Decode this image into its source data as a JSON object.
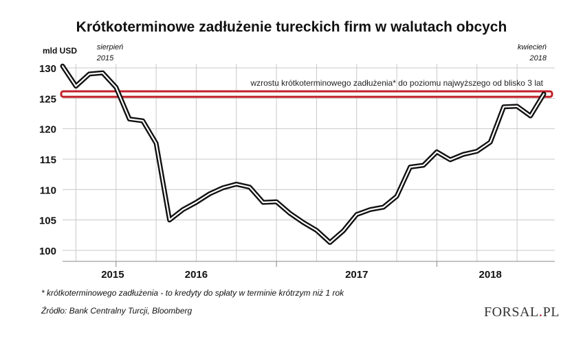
{
  "chart_data": {
    "type": "line",
    "title": "Krótkoterminowe zadłużenie tureckich firm w walutach obcych",
    "ylabel": "mld USD",
    "xlabel": "",
    "ylim": [
      100,
      130
    ],
    "yticks": [
      100,
      105,
      110,
      115,
      120,
      125,
      130
    ],
    "year_labels": [
      "2015",
      "2016",
      "2017",
      "2018"
    ],
    "series": [
      {
        "values": [
          130.3,
          127.0,
          129.0,
          129.2,
          126.8,
          121.6,
          121.3,
          117.6,
          105.0,
          106.7,
          107.9,
          109.3,
          110.3,
          110.9,
          110.4,
          107.9,
          108.0,
          106.1,
          104.6,
          103.3,
          101.3,
          103.2,
          105.9,
          106.7,
          107.1,
          108.9,
          113.7,
          114.0,
          116.2,
          114.9,
          115.8,
          116.3,
          117.8,
          123.6,
          123.7,
          122.1,
          125.7
        ]
      }
    ],
    "reference_value": 125.7,
    "reference_label": "wzrostu krótkoterminowego zadłużenia* do poziomu najwyższego od blisko 3 lat",
    "annotations": [
      {
        "text": [
          "sierpień",
          "2015"
        ],
        "point_index": 4
      },
      {
        "text": [
          "kwiecień",
          "2018"
        ],
        "point_index": 36
      }
    ],
    "grid": true,
    "line_color": "#111111",
    "reference_color": "#c21f2a"
  },
  "footnote": "* krótkoterminowego zadłużenia - to kredyty do spłaty w terminie krótrzym niż 1 rok",
  "source": "Źródło: Bank Centralny Turcji, Bloomberg",
  "logo": {
    "text": "FORSAL",
    "dot": ".",
    "suffix": "PL"
  }
}
